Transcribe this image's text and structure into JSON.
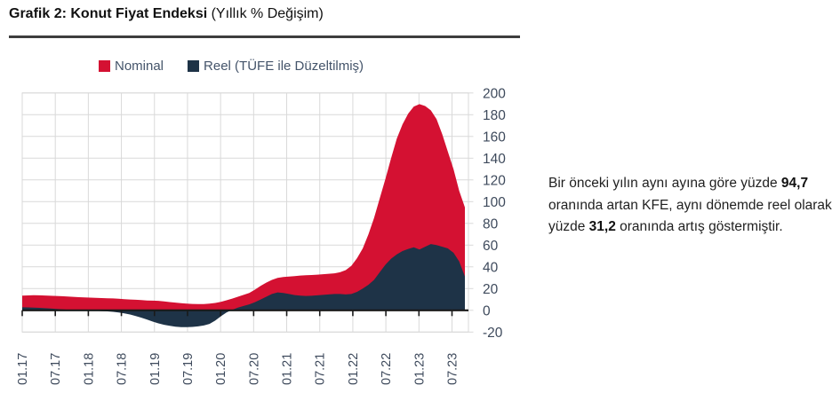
{
  "title": {
    "main": "Grafik 2: Konut Fiyat Endeksi",
    "sub": " (Yıllık % Değişim)"
  },
  "legend": [
    {
      "label": "Nominal",
      "color": "#D41132"
    },
    {
      "label": "Reel (TÜFE ile Düzeltilmiş)",
      "color": "#1E3347"
    }
  ],
  "annotation": {
    "p1": "Bir önceki yılın aynı ayına göre yüzde ",
    "b1": "94,7",
    "p2": " oranında artan KFE, aynı dönemde reel olarak yüzde ",
    "b2": "31,2",
    "p3": " oranında artış göstermiştir."
  },
  "chart_data": {
    "type": "area",
    "title": "Grafik 2: Konut Fiyat Endeksi (Yıllık % Değişim)",
    "x_start": "01.17",
    "x_end": "07.23",
    "x_frequency": "monthly",
    "x_tick_labels": [
      "01.17",
      "07.17",
      "01.18",
      "07.18",
      "01.19",
      "07.19",
      "01.20",
      "07.20",
      "01.21",
      "07.21",
      "01.22",
      "07.22",
      "01.23",
      "07.23"
    ],
    "y_ticks": [
      200,
      180,
      160,
      140,
      120,
      100,
      80,
      60,
      40,
      20,
      0,
      -20
    ],
    "ylim": [
      -20,
      200
    ],
    "grid": true,
    "legend_position": "top",
    "grid_color": "#D9D9D9",
    "axis_line_color": "#1a1a1a",
    "label_color": "#3E4A5C",
    "series": [
      {
        "name": "Nominal",
        "color": "#D41132",
        "values": [
          13.5,
          13.7,
          13.9,
          13.8,
          13.6,
          13.4,
          13.2,
          13.0,
          12.7,
          12.4,
          12.1,
          11.9,
          11.7,
          11.5,
          11.3,
          11.1,
          10.9,
          10.6,
          10.3,
          10.0,
          9.7,
          9.4,
          9.1,
          8.9,
          8.7,
          8.2,
          7.6,
          7.1,
          6.6,
          6.2,
          5.9,
          5.7,
          5.8,
          6.1,
          6.8,
          7.8,
          9.2,
          10.8,
          12.5,
          14.2,
          16.0,
          19.0,
          22.5,
          25.5,
          28.0,
          29.8,
          30.6,
          31.0,
          31.5,
          32.0,
          32.3,
          32.5,
          32.8,
          33.2,
          33.6,
          34.0,
          35.0,
          37.0,
          41.0,
          48.0,
          57.0,
          70.0,
          85.0,
          103.0,
          121.0,
          140.0,
          158.0,
          171.0,
          181.0,
          187.5,
          189.7,
          188.0,
          184.0,
          176.0,
          162.0,
          146.0,
          130.0,
          110.0,
          94.7
        ]
      },
      {
        "name": "Reel (TÜFE ile Düzeltilmiş)",
        "color": "#1E3347",
        "values": [
          2.8,
          2.7,
          2.5,
          2.3,
          2.0,
          1.7,
          1.3,
          1.0,
          0.6,
          0.3,
          0.1,
          0.0,
          -0.2,
          -0.4,
          -0.7,
          -1.0,
          -1.4,
          -2.0,
          -2.8,
          -3.8,
          -5.2,
          -6.8,
          -8.6,
          -10.4,
          -12.0,
          -13.3,
          -14.3,
          -15.0,
          -15.4,
          -15.5,
          -15.3,
          -14.8,
          -14.0,
          -12.5,
          -9.5,
          -5.5,
          -2.0,
          0.5,
          2.5,
          4.0,
          5.5,
          7.5,
          10.0,
          12.5,
          15.0,
          16.5,
          16.0,
          15.0,
          14.0,
          13.5,
          13.2,
          13.4,
          13.8,
          14.2,
          14.6,
          15.0,
          15.0,
          14.6,
          15.0,
          17.0,
          20.0,
          23.5,
          28.0,
          35.0,
          42.0,
          47.5,
          51.5,
          54.5,
          56.5,
          58.0,
          56.0,
          58.5,
          61.0,
          60.0,
          58.5,
          57.0,
          53.0,
          45.0,
          31.2
        ]
      }
    ],
    "last_point": {
      "nominal": 94.7,
      "reel": 31.2
    }
  }
}
